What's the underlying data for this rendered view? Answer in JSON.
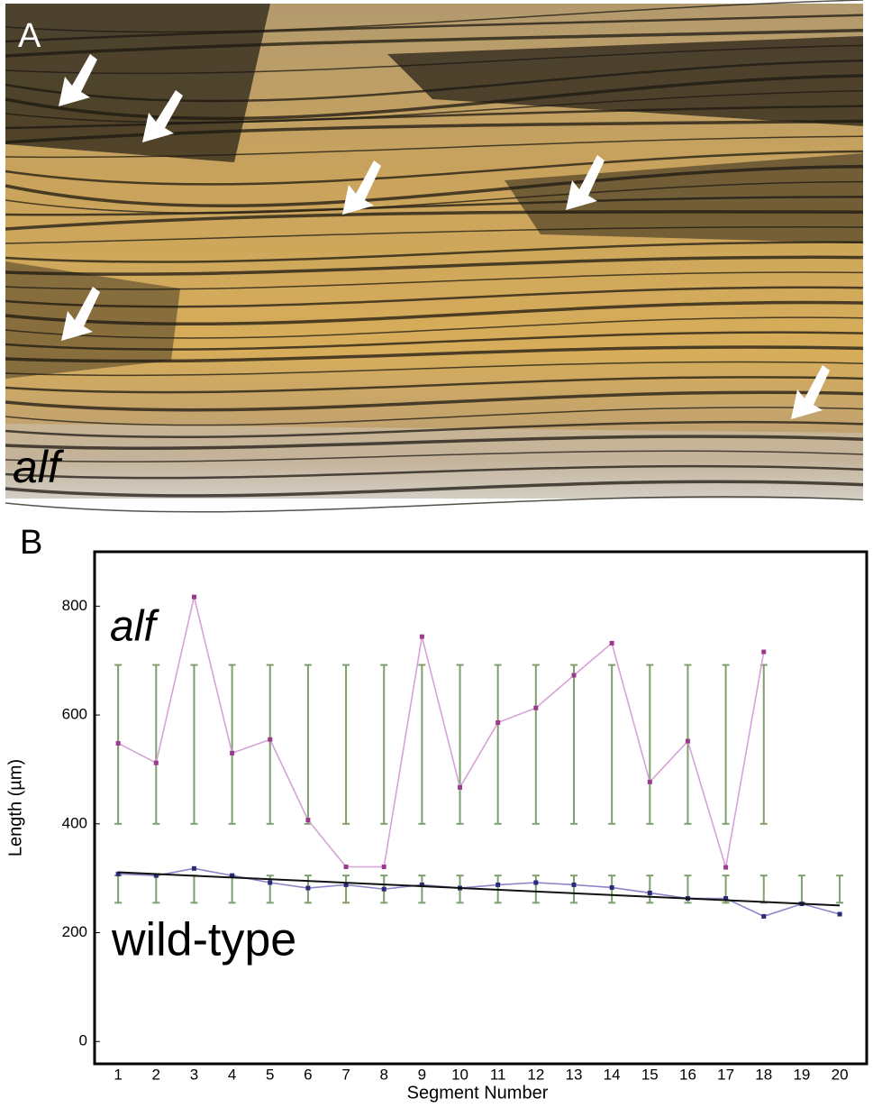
{
  "panel_a": {
    "label": "A",
    "caption": "alf"
  },
  "chart_data": {
    "type": "line",
    "panel_label": "B",
    "x_label": "Segment Number",
    "y_label": "Length (µm)",
    "xlim": [
      0.38,
      20.71
    ],
    "ylim": [
      -41,
      900
    ],
    "xticks": [
      1,
      2,
      3,
      4,
      5,
      6,
      7,
      8,
      9,
      10,
      11,
      12,
      13,
      14,
      15,
      16,
      17,
      18,
      19,
      20
    ],
    "yticks": [
      0,
      200,
      400,
      600,
      800
    ],
    "range_color": "#7f9f6e",
    "series": [
      {
        "name": "alf",
        "color": "#d7a2d6",
        "marker_color": "#9a3a8e",
        "x": [
          1,
          2,
          3,
          4,
          5,
          6,
          7,
          8,
          9,
          10,
          11,
          12,
          13,
          14,
          15,
          16,
          17,
          18
        ],
        "values": [
          548,
          512,
          817,
          530,
          555,
          407,
          321,
          321,
          744,
          467,
          586,
          613,
          673,
          732,
          477,
          552,
          320,
          716
        ],
        "range": [
          400,
          692
        ]
      },
      {
        "name": "wild-type",
        "color": "#8a86c9",
        "marker_color": "#2a2a78",
        "x": [
          1,
          2,
          3,
          4,
          5,
          6,
          7,
          8,
          9,
          10,
          11,
          12,
          13,
          14,
          15,
          16,
          17,
          18,
          19,
          20
        ],
        "values": [
          308,
          305,
          318,
          305,
          292,
          282,
          288,
          280,
          288,
          282,
          288,
          292,
          288,
          283,
          273,
          263,
          263,
          230,
          253,
          234
        ],
        "range": [
          255,
          305
        ]
      }
    ],
    "trend": {
      "x": [
        1,
        20
      ],
      "values": [
        311,
        250
      ],
      "color": "#111111"
    }
  }
}
